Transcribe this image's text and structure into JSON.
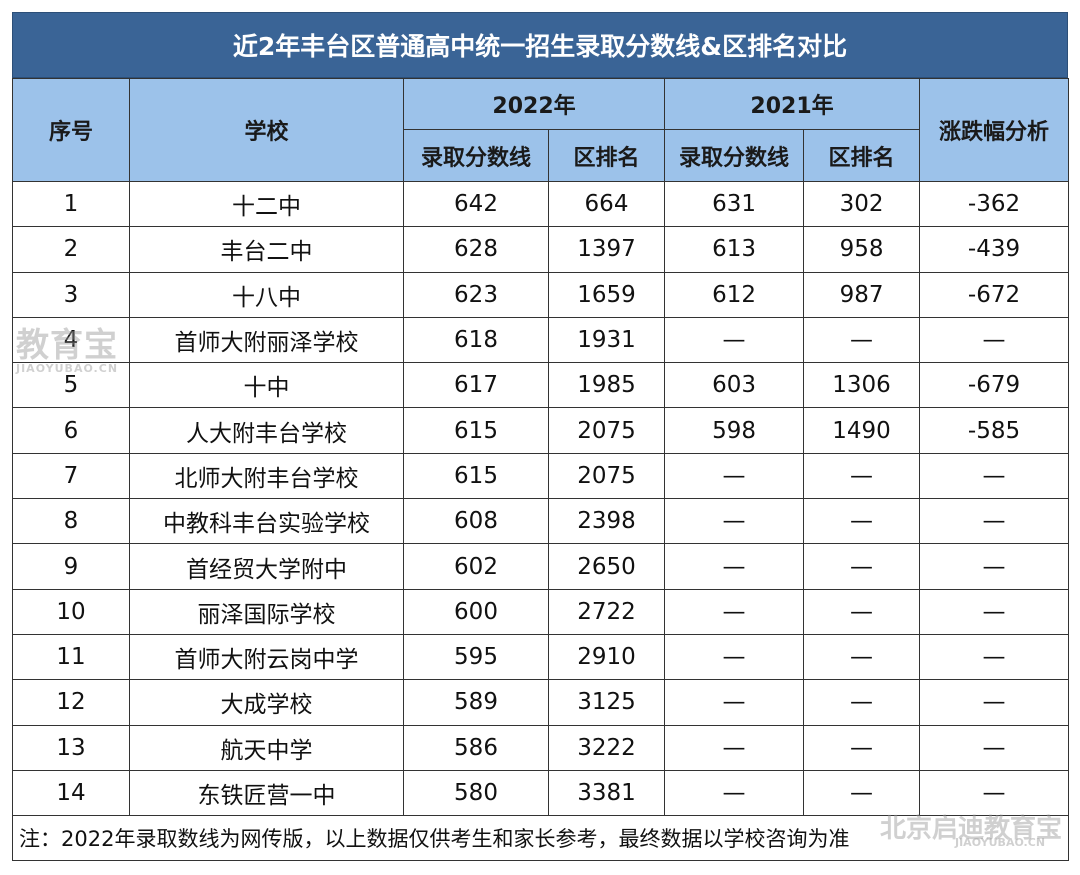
{
  "title": "近2年丰台区普通高中统一招生录取分数线&区排名对比",
  "headers": {
    "index": "序号",
    "school": "学校",
    "year_2022": "2022年",
    "year_2021": "2021年",
    "change": "涨跌幅分析",
    "score_2022": "录取分数线",
    "rank_2022": "区排名",
    "score_2021": "录取分数线",
    "rank_2021": "区排名"
  },
  "rows": [
    {
      "index": "1",
      "school": "十二中",
      "score_2022": "642",
      "rank_2022": "664",
      "score_2021": "631",
      "rank_2021": "302",
      "change": "-362"
    },
    {
      "index": "2",
      "school": "丰台二中",
      "score_2022": "628",
      "rank_2022": "1397",
      "score_2021": "613",
      "rank_2021": "958",
      "change": "-439"
    },
    {
      "index": "3",
      "school": "十八中",
      "score_2022": "623",
      "rank_2022": "1659",
      "score_2021": "612",
      "rank_2021": "987",
      "change": "-672"
    },
    {
      "index": "4",
      "school": "首师大附丽泽学校",
      "score_2022": "618",
      "rank_2022": "1931",
      "score_2021": "—",
      "rank_2021": "—",
      "change": "—"
    },
    {
      "index": "5",
      "school": "十中",
      "score_2022": "617",
      "rank_2022": "1985",
      "score_2021": "603",
      "rank_2021": "1306",
      "change": "-679"
    },
    {
      "index": "6",
      "school": "人大附丰台学校",
      "score_2022": "615",
      "rank_2022": "2075",
      "score_2021": "598",
      "rank_2021": "1490",
      "change": "-585"
    },
    {
      "index": "7",
      "school": "北师大附丰台学校",
      "score_2022": "615",
      "rank_2022": "2075",
      "score_2021": "—",
      "rank_2021": "—",
      "change": "—"
    },
    {
      "index": "8",
      "school": "中教科丰台实验学校",
      "score_2022": "608",
      "rank_2022": "2398",
      "score_2021": "—",
      "rank_2021": "—",
      "change": "—"
    },
    {
      "index": "9",
      "school": "首经贸大学附中",
      "score_2022": "602",
      "rank_2022": "2650",
      "score_2021": "—",
      "rank_2021": "—",
      "change": "—"
    },
    {
      "index": "10",
      "school": "丽泽国际学校",
      "score_2022": "600",
      "rank_2022": "2722",
      "score_2021": "—",
      "rank_2021": "—",
      "change": "—"
    },
    {
      "index": "11",
      "school": "首师大附云岗中学",
      "score_2022": "595",
      "rank_2022": "2910",
      "score_2021": "—",
      "rank_2021": "—",
      "change": "—"
    },
    {
      "index": "12",
      "school": "大成学校",
      "score_2022": "589",
      "rank_2022": "3125",
      "score_2021": "—",
      "rank_2021": "—",
      "change": "—"
    },
    {
      "index": "13",
      "school": "航天中学",
      "score_2022": "586",
      "rank_2022": "3222",
      "score_2021": "—",
      "rank_2021": "—",
      "change": "—"
    },
    {
      "index": "14",
      "school": "东铁匠营一中",
      "score_2022": "580",
      "rank_2022": "3381",
      "score_2021": "—",
      "rank_2021": "—",
      "change": "—"
    }
  ],
  "note": "注：2022年录取数线为网传版，以上数据仅供考生和家长参考，最终数据以学校咨询为准",
  "watermark": {
    "main": "教育宝",
    "url": "JIAOYUBAO.CN",
    "corner": "北京启迪教育宝",
    "corner_url": "JIAOYUBAO.CN"
  },
  "colors": {
    "title_bg": "#3a6496",
    "header_bg": "#9cc2ea"
  }
}
